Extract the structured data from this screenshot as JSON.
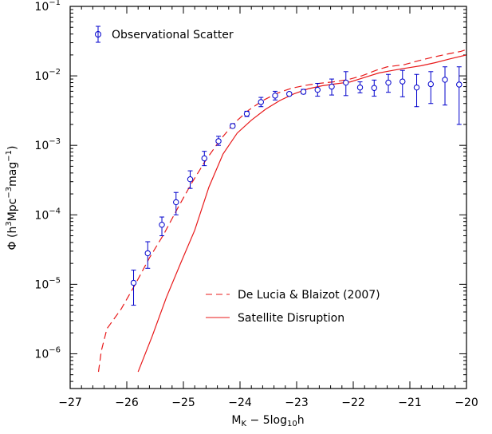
{
  "chart_data": {
    "type": "scatter",
    "xlabel": {
      "main": "M",
      "sub": "K",
      "rest": " − 5log",
      "sub2": "10",
      "tail": "h"
    },
    "ylabel": {
      "pre": "Φ (h",
      "sup1": "3",
      "mid": "Mpc",
      "sup2": "−3",
      "mid2": "mag",
      "sup3": "−1",
      "post": ")"
    },
    "xlim": [
      -27,
      -20
    ],
    "ylim_log10": [
      -6.5,
      -1
    ],
    "y_scale": "log",
    "x_ticks": [
      -27,
      -26,
      -25,
      -24,
      -23,
      -22,
      -21,
      -20
    ],
    "x_tick_labels": [
      "−27",
      "−26",
      "−25",
      "−24",
      "−23",
      "−22",
      "−21",
      "−20"
    ],
    "y_ticks_log10": [
      -6,
      -5,
      -4,
      -3,
      -2,
      -1
    ],
    "y_tick_labels": [
      {
        "base": "10",
        "exp": "−6"
      },
      {
        "base": "10",
        "exp": "−5"
      },
      {
        "base": "10",
        "exp": "−4"
      },
      {
        "base": "10",
        "exp": "−3"
      },
      {
        "base": "10",
        "exp": "−2"
      },
      {
        "base": "10",
        "exp": "−1"
      }
    ],
    "colors": {
      "observations": "#0000cc",
      "models": "#e8191a",
      "axes": "#000000"
    },
    "legend": {
      "observations": "Observational Scatter",
      "dashed": "De Lucia & Blaizot (2007)",
      "solid": "Satellite Disruption"
    },
    "series": [
      {
        "name": "Observational Scatter",
        "kind": "errorbar",
        "points": [
          {
            "x": -25.88,
            "y": 1.05e-05,
            "ylo": 5e-06,
            "yhi": 1.6e-05
          },
          {
            "x": -25.63,
            "y": 2.8e-05,
            "ylo": 1.7e-05,
            "yhi": 4.1e-05
          },
          {
            "x": -25.38,
            "y": 7.2e-05,
            "ylo": 5e-05,
            "yhi": 9.3e-05
          },
          {
            "x": -25.13,
            "y": 0.000152,
            "ylo": 0.0001,
            "yhi": 0.00021
          },
          {
            "x": -24.88,
            "y": 0.000325,
            "ylo": 0.00024,
            "yhi": 0.00043
          },
          {
            "x": -24.63,
            "y": 0.00065,
            "ylo": 0.00051,
            "yhi": 0.00082
          },
          {
            "x": -24.38,
            "y": 0.00115,
            "ylo": 0.001,
            "yhi": 0.00135
          },
          {
            "x": -24.13,
            "y": 0.0019,
            "ylo": 0.0018,
            "yhi": 0.00205
          },
          {
            "x": -23.88,
            "y": 0.00285,
            "ylo": 0.0026,
            "yhi": 0.0031
          },
          {
            "x": -23.63,
            "y": 0.0042,
            "ylo": 0.0036,
            "yhi": 0.0049
          },
          {
            "x": -23.38,
            "y": 0.0052,
            "ylo": 0.0045,
            "yhi": 0.006
          },
          {
            "x": -23.13,
            "y": 0.0055,
            "ylo": 0.0052,
            "yhi": 0.0058
          },
          {
            "x": -22.88,
            "y": 0.0059,
            "ylo": 0.0055,
            "yhi": 0.0064
          },
          {
            "x": -22.63,
            "y": 0.0063,
            "ylo": 0.0051,
            "yhi": 0.0078
          },
          {
            "x": -22.38,
            "y": 0.007,
            "ylo": 0.0053,
            "yhi": 0.009
          },
          {
            "x": -22.13,
            "y": 0.008,
            "ylo": 0.0052,
            "yhi": 0.0115
          },
          {
            "x": -21.88,
            "y": 0.0068,
            "ylo": 0.0057,
            "yhi": 0.0082
          },
          {
            "x": -21.63,
            "y": 0.0067,
            "ylo": 0.0051,
            "yhi": 0.0087
          },
          {
            "x": -21.38,
            "y": 0.008,
            "ylo": 0.0058,
            "yhi": 0.0105
          },
          {
            "x": -21.13,
            "y": 0.0083,
            "ylo": 0.005,
            "yhi": 0.012
          },
          {
            "x": -20.88,
            "y": 0.0068,
            "ylo": 0.0036,
            "yhi": 0.0105
          },
          {
            "x": -20.63,
            "y": 0.0076,
            "ylo": 0.004,
            "yhi": 0.0115
          },
          {
            "x": -20.38,
            "y": 0.0088,
            "ylo": 0.0038,
            "yhi": 0.0135
          },
          {
            "x": -20.13,
            "y": 0.0075,
            "ylo": 0.002,
            "yhi": 0.0135
          }
        ]
      },
      {
        "name": "De Lucia & Blaizot (2007)",
        "kind": "line-dashed",
        "x": [
          -26.5,
          -26.45,
          -26.35,
          -26.1,
          -25.85,
          -25.6,
          -25.35,
          -25.1,
          -24.85,
          -24.6,
          -24.35,
          -24.1,
          -23.85,
          -23.6,
          -23.35,
          -23.1,
          -22.85,
          -22.6,
          -22.35,
          -22.1,
          -21.85,
          -21.6,
          -21.4,
          -21.1,
          -20.85,
          -20.6,
          -20.35,
          -20.1,
          -20.0
        ],
        "y": [
          5.5e-07,
          1.1e-06,
          2.3e-06,
          4.4e-06,
          1e-05,
          2.4e-05,
          5.2e-05,
          0.000125,
          0.00029,
          0.00062,
          0.0012,
          0.0021,
          0.0032,
          0.0044,
          0.0056,
          0.0066,
          0.0073,
          0.0078,
          0.0082,
          0.0088,
          0.01,
          0.012,
          0.0135,
          0.0145,
          0.0165,
          0.0185,
          0.0205,
          0.0225,
          0.024
        ]
      },
      {
        "name": "Satellite Disruption",
        "kind": "line-solid",
        "x": [
          -25.8,
          -25.55,
          -25.3,
          -25.05,
          -24.8,
          -24.55,
          -24.3,
          -24.05,
          -23.8,
          -23.55,
          -23.3,
          -23.05,
          -22.8,
          -22.55,
          -22.3,
          -22.05,
          -21.8,
          -21.55,
          -21.3,
          -21.05,
          -20.8,
          -20.55,
          -20.3,
          -20.0
        ],
        "y": [
          5.5e-07,
          1.8e-06,
          6.5e-06,
          2e-05,
          6e-05,
          0.00025,
          0.00075,
          0.0015,
          0.0023,
          0.0033,
          0.0044,
          0.0055,
          0.0065,
          0.0072,
          0.0077,
          0.0082,
          0.0095,
          0.011,
          0.012,
          0.013,
          0.014,
          0.0155,
          0.0175,
          0.02
        ]
      }
    ]
  }
}
